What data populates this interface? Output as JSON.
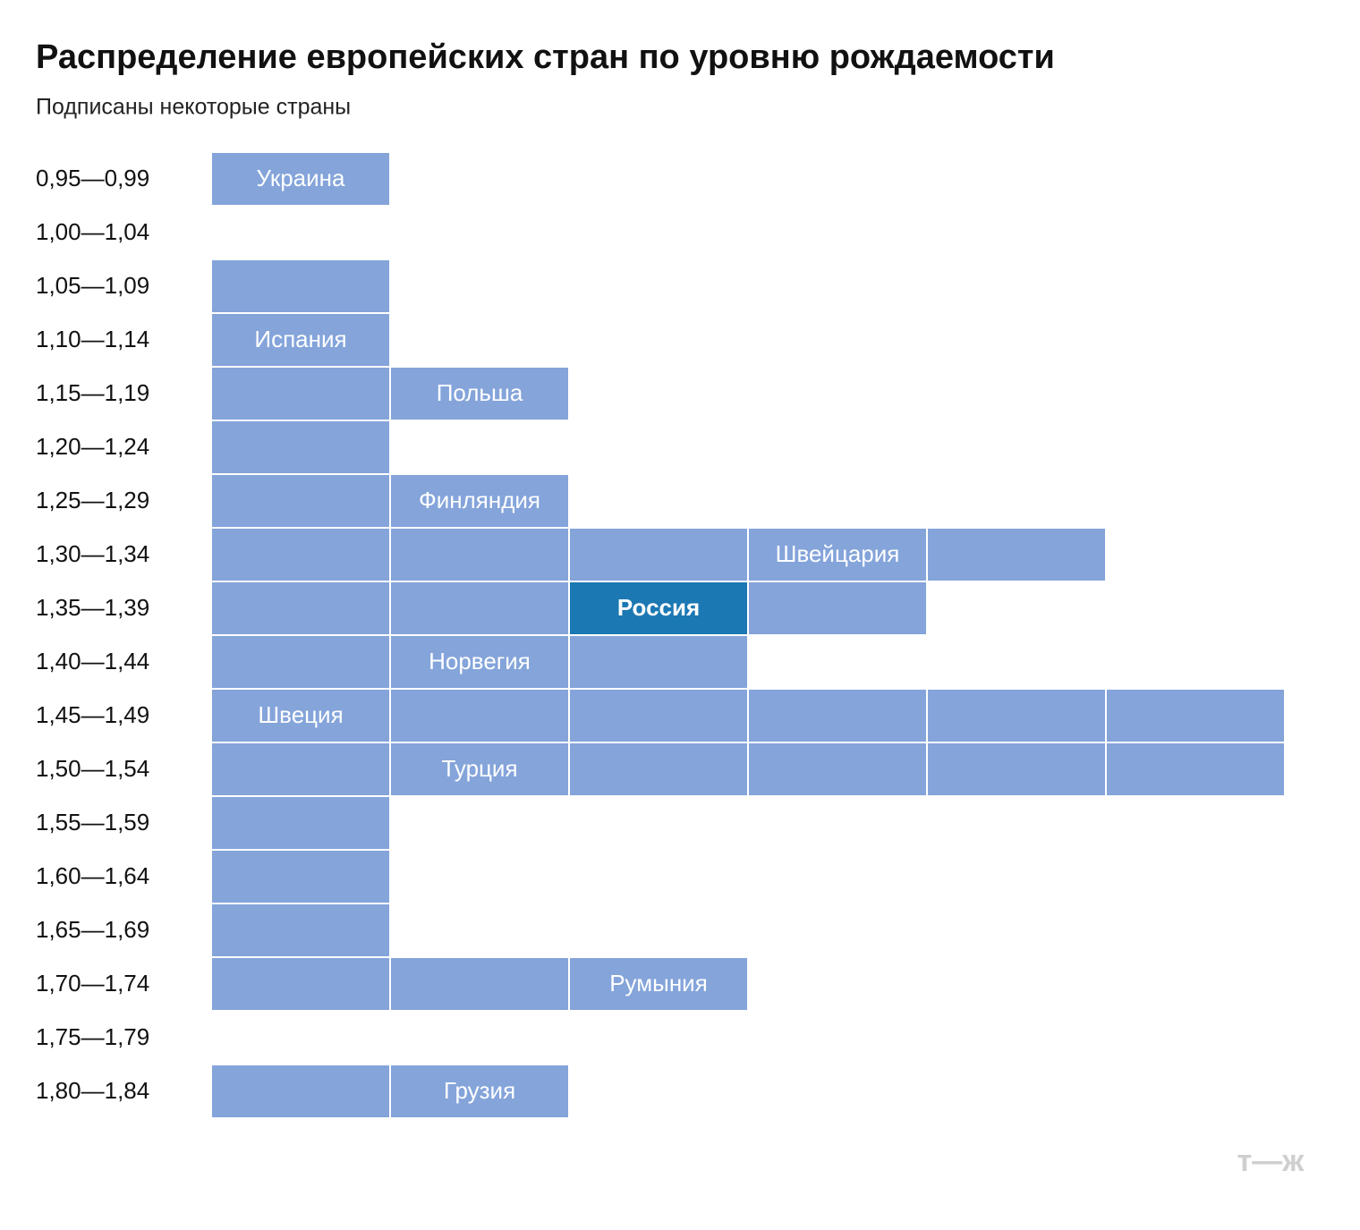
{
  "chart_data": {
    "type": "unit",
    "title": "Распределение европейских стран по уровню рождаемости",
    "subtitle": "Подписаны некоторые страны",
    "categories": [
      "0,95—0,99",
      "1,00—1,04",
      "1,05—1,09",
      "1,10—1,14",
      "1,15—1,19",
      "1,20—1,24",
      "1,25—1,29",
      "1,30—1,34",
      "1,35—1,39",
      "1,40—1,44",
      "1,45—1,49",
      "1,50—1,54",
      "1,55—1,59",
      "1,60—1,64",
      "1,65—1,69",
      "1,70—1,74",
      "1,75—1,79",
      "1,80—1,84"
    ],
    "values": [
      1,
      0,
      1,
      1,
      2,
      1,
      2,
      5,
      4,
      3,
      6,
      6,
      1,
      1,
      1,
      3,
      0,
      2
    ],
    "color": "#84a4da",
    "cell_labels": [
      [
        "Украина"
      ],
      [],
      [
        null
      ],
      [
        "Испания"
      ],
      [
        null,
        "Польша"
      ],
      [
        null
      ],
      [
        null,
        "Финляндия"
      ],
      [
        null,
        null,
        null,
        "Швейцария",
        null
      ],
      [
        null,
        null,
        {
          "label": "Россия",
          "color": "#1b78b3",
          "bold": true
        },
        null
      ],
      [
        null,
        "Норвегия",
        null
      ],
      [
        "Швеция",
        null,
        null,
        null,
        null,
        null
      ],
      [
        null,
        "Турция",
        null,
        null,
        null,
        null
      ],
      [
        null
      ],
      [
        null
      ],
      [
        null
      ],
      [
        null,
        null,
        "Румыния"
      ],
      [],
      [
        null,
        "Грузия"
      ]
    ],
    "logo": "т—ж"
  }
}
